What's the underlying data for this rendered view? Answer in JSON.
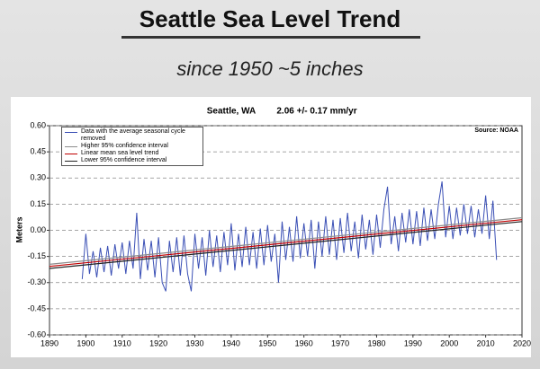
{
  "slide": {
    "title": "Seattle Sea Level Trend",
    "subtitle": "since 1950 ~5 inches"
  },
  "chart_data": {
    "type": "line",
    "title": "Seattle, WA",
    "subtitle": "2.06 +/- 0.17 mm/yr",
    "source": "Source: NOAA",
    "ylabel": "Meters",
    "xlim": [
      1890,
      2020
    ],
    "xticks": [
      1890,
      1900,
      1910,
      1920,
      1930,
      1940,
      1950,
      1960,
      1970,
      1980,
      1990,
      2000,
      2010,
      2020
    ],
    "ylim": [
      -0.6,
      0.6
    ],
    "yticks": [
      {
        "value": -0.6,
        "label": "-0.60"
      },
      {
        "value": -0.45,
        "label": "-0.45"
      },
      {
        "value": -0.3,
        "label": "-0.30"
      },
      {
        "value": -0.15,
        "label": "-0.15"
      },
      {
        "value": 0,
        "label": "0.00"
      },
      {
        "value": 0.15,
        "label": "0.15"
      },
      {
        "value": 0.3,
        "label": "0.30"
      },
      {
        "value": 0.45,
        "label": "0.45"
      },
      {
        "value": 0.6,
        "label": "0.60"
      }
    ],
    "grid": true,
    "legend": "upper left",
    "series": [
      {
        "name": "Data with the average seasonal cycle removed",
        "color": "#3a4fb5",
        "x": [
          1899,
          1900,
          1901,
          1902,
          1903,
          1904,
          1905,
          1906,
          1907,
          1908,
          1909,
          1910,
          1911,
          1912,
          1913,
          1914,
          1915,
          1916,
          1917,
          1918,
          1919,
          1920,
          1921,
          1922,
          1923,
          1924,
          1925,
          1926,
          1927,
          1928,
          1929,
          1930,
          1931,
          1932,
          1933,
          1934,
          1935,
          1936,
          1937,
          1938,
          1939,
          1940,
          1941,
          1942,
          1943,
          1944,
          1945,
          1946,
          1947,
          1948,
          1949,
          1950,
          1951,
          1952,
          1953,
          1954,
          1955,
          1956,
          1957,
          1958,
          1959,
          1960,
          1961,
          1962,
          1963,
          1964,
          1965,
          1966,
          1967,
          1968,
          1969,
          1970,
          1971,
          1972,
          1973,
          1974,
          1975,
          1976,
          1977,
          1978,
          1979,
          1980,
          1981,
          1982,
          1983,
          1984,
          1985,
          1986,
          1987,
          1988,
          1989,
          1990,
          1991,
          1992,
          1993,
          1994,
          1995,
          1996,
          1997,
          1998,
          1999,
          2000,
          2001,
          2002,
          2003,
          2004,
          2005,
          2006,
          2007,
          2008,
          2009,
          2010,
          2011,
          2012,
          2013
        ],
        "values": [
          -0.28,
          -0.02,
          -0.25,
          -0.12,
          -0.27,
          -0.1,
          -0.24,
          -0.09,
          -0.26,
          -0.08,
          -0.22,
          -0.07,
          -0.25,
          -0.06,
          -0.22,
          0.1,
          -0.28,
          -0.05,
          -0.23,
          -0.06,
          -0.27,
          -0.04,
          -0.3,
          -0.35,
          -0.06,
          -0.24,
          -0.04,
          -0.26,
          -0.03,
          -0.25,
          -0.35,
          -0.02,
          -0.22,
          -0.04,
          -0.26,
          0.0,
          -0.21,
          -0.03,
          -0.24,
          -0.01,
          -0.2,
          0.04,
          -0.23,
          -0.02,
          -0.21,
          0.02,
          -0.2,
          -0.01,
          -0.22,
          0.01,
          -0.2,
          0.03,
          -0.18,
          -0.02,
          -0.3,
          0.05,
          -0.17,
          0.02,
          -0.18,
          0.08,
          -0.16,
          0.04,
          -0.15,
          0.06,
          -0.22,
          0.05,
          -0.15,
          0.08,
          -0.14,
          0.06,
          -0.17,
          0.07,
          -0.13,
          0.1,
          -0.12,
          0.05,
          -0.16,
          0.09,
          -0.11,
          0.06,
          -0.14,
          0.09,
          -0.1,
          0.12,
          0.25,
          -0.08,
          0.08,
          -0.12,
          0.1,
          -0.07,
          0.12,
          -0.08,
          0.11,
          -0.09,
          0.13,
          -0.06,
          0.12,
          -0.05,
          0.15,
          0.28,
          -0.04,
          0.14,
          -0.05,
          0.13,
          -0.03,
          0.15,
          -0.02,
          0.14,
          -0.04,
          0.12,
          -0.02,
          0.2,
          -0.05,
          0.17,
          -0.17
        ]
      },
      {
        "name": "Higher 95% confidence interval",
        "color": "#8c8c8c",
        "x": [
          1890,
          2020
        ],
        "values": [
          -0.195,
          0.072
        ]
      },
      {
        "name": "Linear mean sea level trend",
        "color": "#c00000",
        "x": [
          1890,
          2020
        ],
        "values": [
          -0.207,
          0.061
        ]
      },
      {
        "name": "Lower 95% confidence interval",
        "color": "#222222",
        "x": [
          1890,
          2020
        ],
        "values": [
          -0.219,
          0.05
        ]
      }
    ]
  }
}
